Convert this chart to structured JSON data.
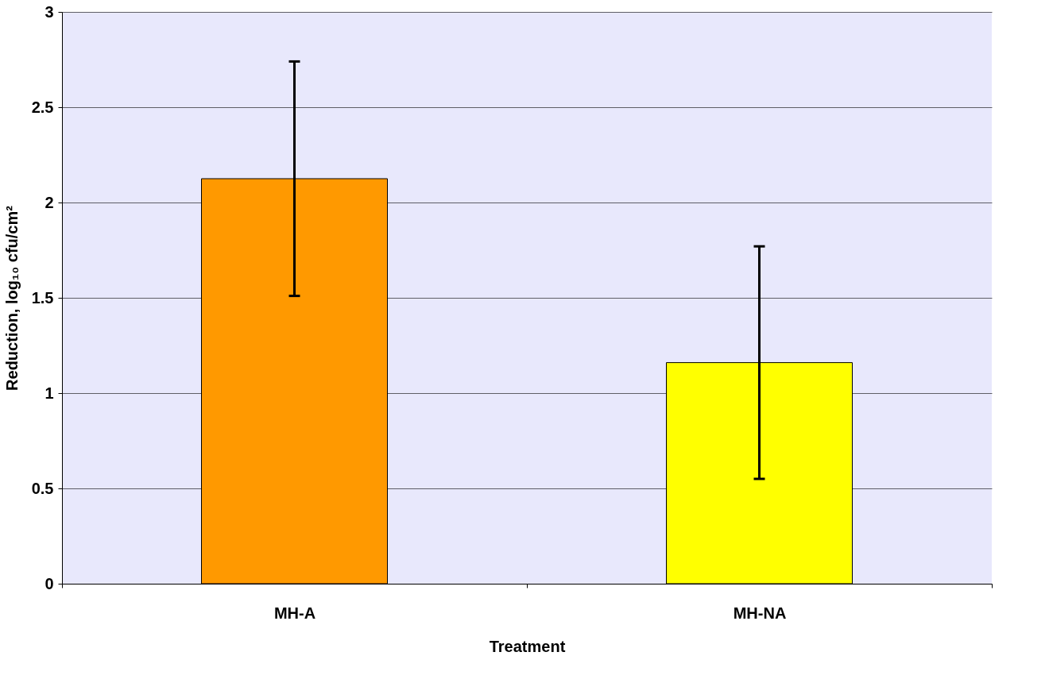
{
  "chart_data": {
    "type": "bar",
    "xlabel": "Treatment",
    "ylabel": "Reduction, log₁₀ cfu/cm²",
    "categories": [
      "MH-A",
      "MH-NA"
    ],
    "values": [
      2.125,
      1.16
    ],
    "colors": [
      "#ff9900",
      "#ffff00"
    ],
    "errors": [
      [
        1.51,
        2.74
      ],
      [
        0.55,
        1.77
      ]
    ],
    "ylim": [
      0,
      3
    ],
    "yticks": [
      0,
      0.5,
      1,
      1.5,
      2,
      2.5,
      3
    ],
    "grid": "y"
  }
}
